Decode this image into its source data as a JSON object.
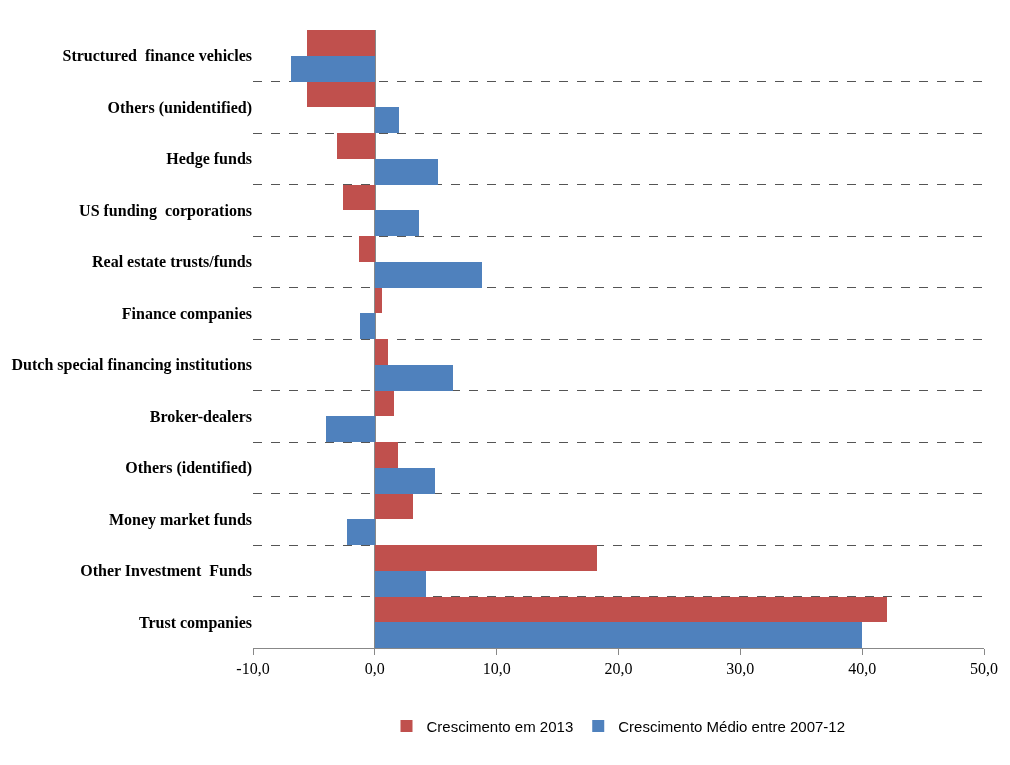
{
  "chart_data": {
    "type": "bar",
    "orientation": "horizontal",
    "categories": [
      "Structured  finance vehicles",
      "Others (unidentified)",
      "Hedge funds",
      "US funding  corporations",
      "Real estate trusts/funds",
      "Finance companies",
      "Dutch special financing institutions",
      "Broker-dealers",
      "Others (identified)",
      "Money market funds",
      "Other Investment  Funds",
      "Trust companies"
    ],
    "series": [
      {
        "name": "Crescimento em 2013",
        "color": "#c0504d",
        "values": [
          -5.6,
          -5.6,
          -3.1,
          -2.6,
          -1.3,
          0.6,
          1.1,
          1.6,
          1.9,
          3.1,
          18.2,
          42.0
        ]
      },
      {
        "name": "Crescimento Médio entre 2007-12",
        "color": "#4f81bd",
        "values": [
          -6.9,
          2.0,
          5.2,
          3.6,
          8.8,
          -1.2,
          6.4,
          -4.0,
          4.9,
          -2.3,
          4.2,
          40.0
        ]
      }
    ],
    "xlim": [
      -10,
      50
    ],
    "xticks": [
      {
        "value": -10,
        "label": "-10,0"
      },
      {
        "value": 0,
        "label": "0,0"
      },
      {
        "value": 10,
        "label": "10,0"
      },
      {
        "value": 20,
        "label": "20,0"
      },
      {
        "value": 30,
        "label": "30,0"
      },
      {
        "value": 40,
        "label": "40,0"
      },
      {
        "value": 50,
        "label": "50,0"
      }
    ],
    "grid": "y",
    "legend": "bottom"
  }
}
